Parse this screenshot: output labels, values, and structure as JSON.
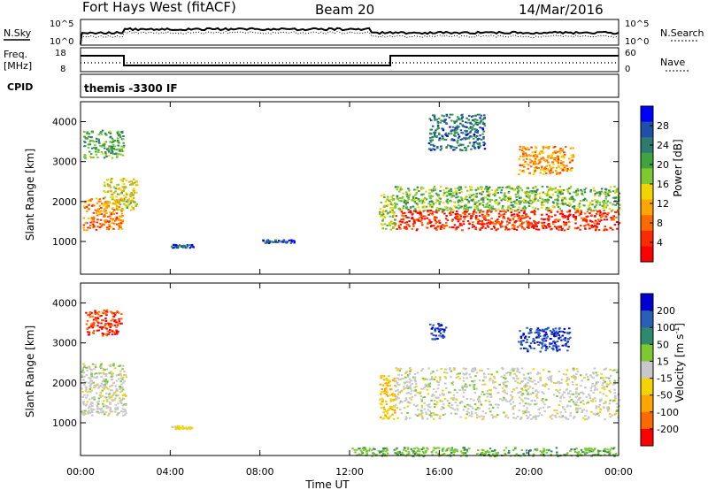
{
  "header": {
    "station": "Fort Hays West (fitACF)",
    "beam": "Beam 20",
    "date": "14/Mar/2016"
  },
  "noise_panel": {
    "left_label": "N.Sky",
    "right_label": "N.Search",
    "left_ticks": [
      "10^5",
      "10^0"
    ],
    "right_ticks": [
      "10^5",
      "10^0"
    ]
  },
  "freq_panel": {
    "left_label_1": "Freq.",
    "left_label_2": "[MHz]",
    "right_label": "Nave",
    "left_ticks": [
      "18",
      "8"
    ],
    "right_ticks": [
      "60",
      "0"
    ]
  },
  "cpid_panel": {
    "label": "CPID",
    "text": "themis -3300 IF"
  },
  "axes": {
    "ylabel": "Slant Range [km]",
    "xlabel": "Time UT",
    "xticks": [
      "00:00",
      "04:00",
      "08:00",
      "12:00",
      "16:00",
      "20:00",
      "00:00"
    ],
    "yticks": [
      "1000",
      "2000",
      "3000",
      "4000"
    ]
  },
  "power_colorbar": {
    "label": "Power [dB]",
    "ticks": [
      "4",
      "8",
      "12",
      "16",
      "20",
      "24",
      "28"
    ],
    "colors": [
      "#0000ff",
      "#1f4fa8",
      "#2c7b6e",
      "#3fa33f",
      "#7ec832",
      "#f4d400",
      "#ffa500",
      "#ff6a00",
      "#ff2a00",
      "#ff0000"
    ]
  },
  "velocity_colorbar": {
    "label_main": "Velocity [m s",
    "label_sup": "-1",
    "label_end": "]",
    "ticks": [
      "200",
      "100",
      "50",
      "15",
      "-15",
      "-50",
      "-100",
      "-200"
    ],
    "colors": [
      "#0000d0",
      "#2a5fb8",
      "#2e8a6c",
      "#7ec832",
      "#c8c8c8",
      "#f4d400",
      "#ffa500",
      "#ff6a00",
      "#ff0000"
    ]
  },
  "chart_data": [
    {
      "type": "heatmap",
      "name": "power",
      "xlim": [
        0,
        24
      ],
      "ylim": [
        180,
        4500
      ],
      "regions": [
        {
          "t": [
            0.1,
            1.9
          ],
          "r": [
            1300,
            2100
          ],
          "level": 0.75
        },
        {
          "t": [
            0.1,
            1.9
          ],
          "r": [
            3100,
            3800
          ],
          "level": 0.35
        },
        {
          "t": [
            1.0,
            2.5
          ],
          "r": [
            1800,
            2600
          ],
          "level": 0.55
        },
        {
          "t": [
            13.3,
            14.0
          ],
          "r": [
            1300,
            2200
          ],
          "level": 0.45
        },
        {
          "t": [
            14.0,
            24.0
          ],
          "r": [
            1300,
            1800
          ],
          "level": 0.9
        },
        {
          "t": [
            14.0,
            24.0
          ],
          "r": [
            1800,
            2400
          ],
          "level": 0.4
        },
        {
          "t": [
            19.5,
            22.0
          ],
          "r": [
            2700,
            3400
          ],
          "level": 0.7
        },
        {
          "t": [
            4.0,
            5.0
          ],
          "r": [
            860,
            940
          ],
          "level": 0.15
        },
        {
          "t": [
            8.0,
            9.5
          ],
          "r": [
            980,
            1060
          ],
          "level": 0.15
        },
        {
          "t": [
            15.5,
            18.0
          ],
          "r": [
            3300,
            4200
          ],
          "level": 0.2
        }
      ]
    },
    {
      "type": "heatmap",
      "name": "velocity",
      "xlim": [
        0,
        24
      ],
      "ylim": [
        180,
        4500
      ],
      "regions": [
        {
          "t": [
            0.2,
            1.8
          ],
          "r": [
            3200,
            3850
          ],
          "level": -0.85
        },
        {
          "t": [
            0.0,
            2.0
          ],
          "r": [
            1200,
            2500
          ],
          "level": 0.0
        },
        {
          "t": [
            13.3,
            14.0
          ],
          "r": [
            1100,
            2200
          ],
          "level": -0.35
        },
        {
          "t": [
            14.0,
            24.0
          ],
          "r": [
            1100,
            2400
          ],
          "level": 0.0
        },
        {
          "t": [
            19.5,
            21.8
          ],
          "r": [
            2800,
            3400
          ],
          "level": 0.85
        },
        {
          "t": [
            15.5,
            16.3
          ],
          "r": [
            3100,
            3500
          ],
          "level": 0.85
        },
        {
          "t": [
            4.0,
            5.0
          ],
          "r": [
            860,
            940
          ],
          "level": -0.2
        },
        {
          "t": [
            12.0,
            24.0
          ],
          "r": [
            180,
            400
          ],
          "level": 0.3
        }
      ]
    }
  ]
}
